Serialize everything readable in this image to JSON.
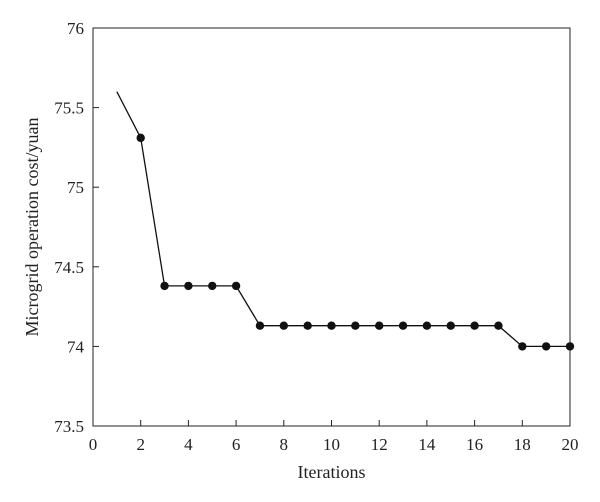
{
  "chart_data": {
    "type": "line",
    "title": "",
    "xlabel": "Iterations",
    "ylabel": "Microgrid operation cost/yuan",
    "xlim": [
      0,
      20
    ],
    "ylim": [
      73.5,
      76
    ],
    "x_ticks": [
      0,
      2,
      4,
      6,
      8,
      10,
      12,
      14,
      16,
      18,
      20
    ],
    "y_ticks": [
      73.5,
      74,
      74.5,
      75,
      75.5,
      76
    ],
    "y_tick_labels": [
      "73.5",
      "74",
      "74.5",
      "75",
      "75.5",
      "76"
    ],
    "grid": false,
    "legend": "none",
    "series": [
      {
        "line_color": "#111111",
        "marker": "filled-circle",
        "points": [
          {
            "x": 1,
            "y": 75.6,
            "marker": false
          },
          {
            "x": 2,
            "y": 75.31,
            "marker": true
          },
          {
            "x": 3,
            "y": 74.38,
            "marker": true
          },
          {
            "x": 4,
            "y": 74.38,
            "marker": true
          },
          {
            "x": 5,
            "y": 74.38,
            "marker": true
          },
          {
            "x": 6,
            "y": 74.38,
            "marker": true
          },
          {
            "x": 7,
            "y": 74.13,
            "marker": true
          },
          {
            "x": 8,
            "y": 74.13,
            "marker": true
          },
          {
            "x": 9,
            "y": 74.13,
            "marker": true
          },
          {
            "x": 10,
            "y": 74.13,
            "marker": true
          },
          {
            "x": 11,
            "y": 74.13,
            "marker": true
          },
          {
            "x": 12,
            "y": 74.13,
            "marker": true
          },
          {
            "x": 13,
            "y": 74.13,
            "marker": true
          },
          {
            "x": 14,
            "y": 74.13,
            "marker": true
          },
          {
            "x": 15,
            "y": 74.13,
            "marker": true
          },
          {
            "x": 16,
            "y": 74.13,
            "marker": true
          },
          {
            "x": 17,
            "y": 74.13,
            "marker": true
          },
          {
            "x": 18,
            "y": 74.0,
            "marker": true
          },
          {
            "x": 19,
            "y": 74.0,
            "marker": true
          },
          {
            "x": 20,
            "y": 74.0,
            "marker": true
          }
        ]
      }
    ]
  }
}
